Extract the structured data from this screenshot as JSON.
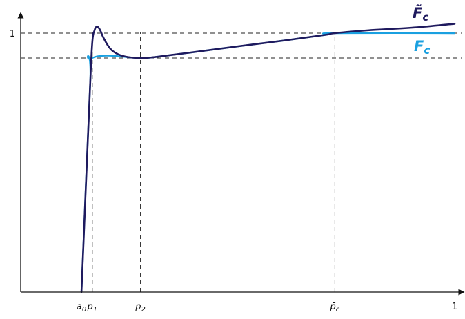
{
  "chart_data": {
    "type": "line",
    "title": "",
    "xlabel": "",
    "ylabel": "",
    "xlim": [
      0,
      1
    ],
    "ylim": [
      0,
      1.03
    ],
    "grid": false,
    "x_ticks": [
      {
        "value": 0.14,
        "base": "a",
        "sub": "0",
        "italic": true
      },
      {
        "value": 0.165,
        "base": "p",
        "sub": "1",
        "italic": true
      },
      {
        "value": 0.276,
        "base": "p",
        "sub": "2",
        "italic": true
      },
      {
        "value": 0.724,
        "base": "p̄",
        "sub": "c",
        "italic": true
      },
      {
        "value": 1.0,
        "base": "1",
        "sub": "",
        "italic": false
      }
    ],
    "y_ticks": [
      {
        "value": 1.0,
        "label": "1"
      }
    ],
    "reference_lines": [
      {
        "orientation": "horizontal",
        "value": 1.0,
        "style": "dashed"
      },
      {
        "orientation": "horizontal",
        "value": 0.904,
        "style": "dashed"
      },
      {
        "orientation": "vertical",
        "value": 0.165,
        "style": "dashed"
      },
      {
        "orientation": "vertical",
        "value": 0.276,
        "style": "dashed"
      },
      {
        "orientation": "vertical",
        "value": 0.724,
        "style": "dashed"
      }
    ],
    "series": [
      {
        "name": "F̃_c",
        "name_base": "F̃",
        "name_sub": "c",
        "color": "#1f1a5e",
        "x": [
          0.14,
          0.15,
          0.16,
          0.165,
          0.17,
          0.175,
          0.18,
          0.185,
          0.19,
          0.2,
          0.21,
          0.225,
          0.24,
          0.255,
          0.276,
          0.3,
          0.4,
          0.5,
          0.6,
          0.7,
          0.724,
          0.8,
          0.9,
          1.0
        ],
        "y": [
          0.0,
          0.4,
          0.8,
          0.965,
          1.01,
          1.025,
          1.02,
          1.005,
          0.985,
          0.955,
          0.934,
          0.918,
          0.91,
          0.906,
          0.904,
          0.906,
          0.927,
          0.949,
          0.97,
          0.993,
          1.0,
          1.011,
          1.021,
          1.036
        ]
      },
      {
        "name": "F_c",
        "name_base": "F",
        "name_sub": "c",
        "color": "#1aa0e0",
        "x": [
          0.14,
          0.16,
          0.165,
          0.276,
          0.3,
          0.4,
          0.5,
          0.6,
          0.7,
          0.724,
          1.0
        ],
        "y": [
          0.0,
          0.8,
          0.904,
          0.904,
          0.906,
          0.927,
          0.949,
          0.97,
          0.993,
          1.0,
          1.0
        ]
      }
    ]
  }
}
